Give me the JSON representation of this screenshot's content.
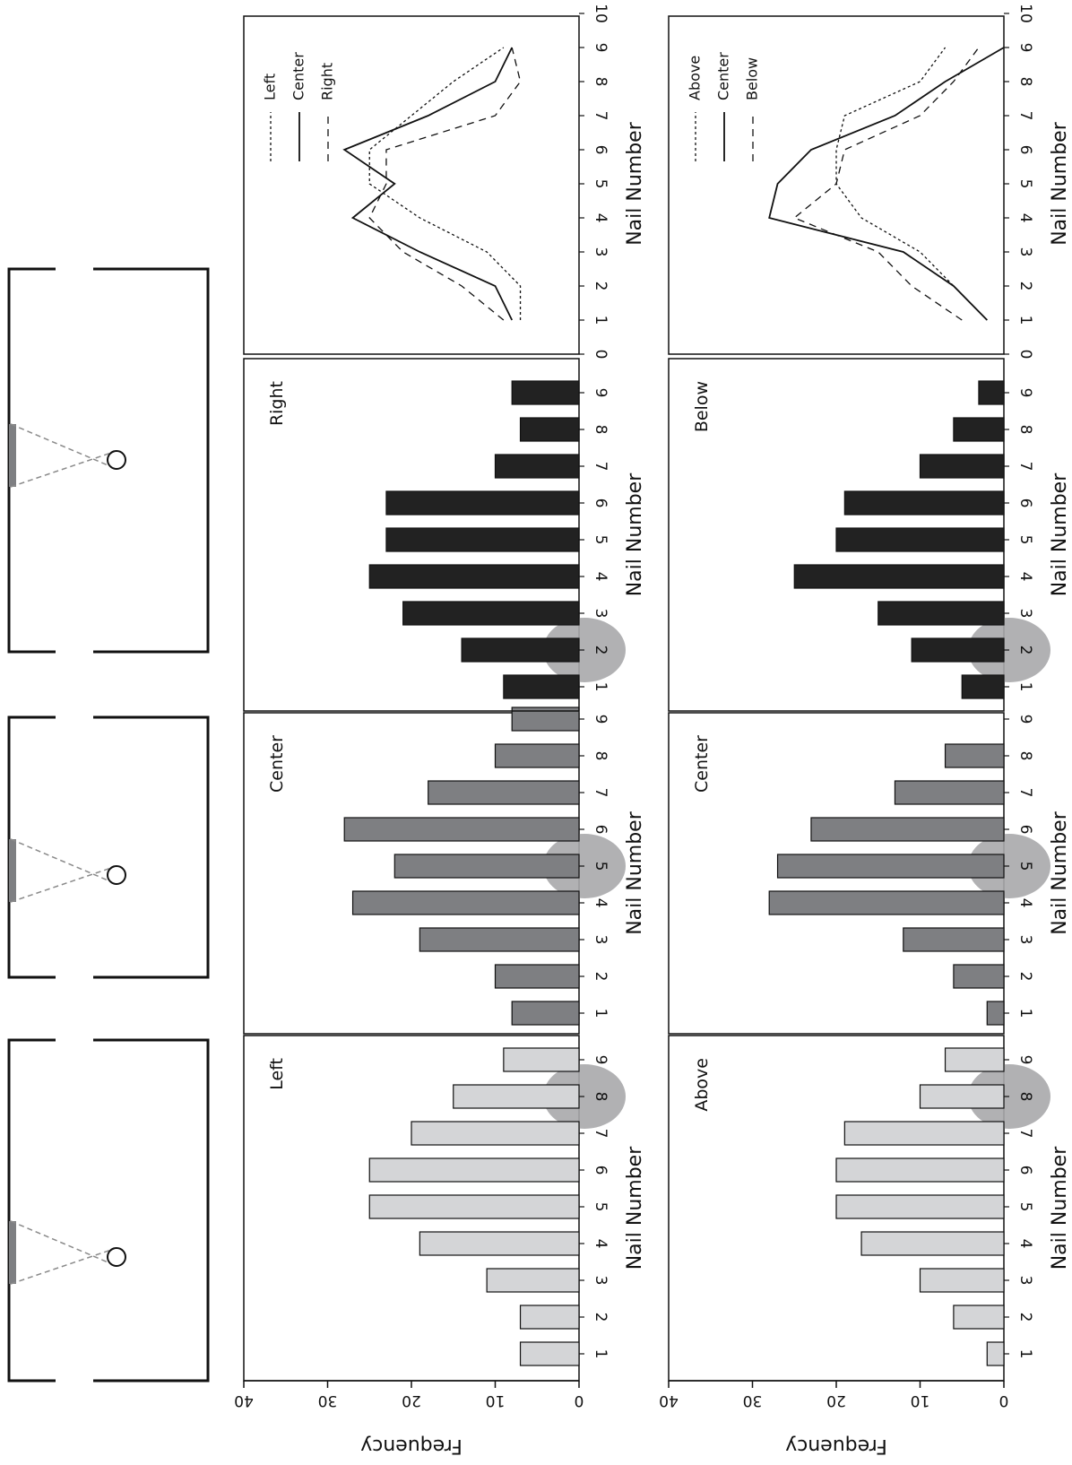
{
  "colors": {
    "left": "#d4d5d7",
    "center": "#7e7f82",
    "right": "#222222",
    "highlight": "#a9a9ab",
    "axis": "#111111",
    "diagram_line": "#8a8a8a"
  },
  "labels": {
    "x_axis": "Nail Number",
    "y_axis": "Frequency",
    "y_ticks": [
      "0",
      "10",
      "20",
      "30",
      "40"
    ],
    "line_x_ticks": [
      "0",
      "1",
      "2",
      "3",
      "4",
      "5",
      "6",
      "7",
      "8",
      "9",
      "10"
    ],
    "bar_x_ticks": [
      "1",
      "2",
      "3",
      "4",
      "5",
      "6",
      "7",
      "8",
      "9"
    ]
  },
  "chart_data": [
    {
      "type": "bar",
      "title": "Left",
      "categories": [
        1,
        2,
        3,
        4,
        5,
        6,
        7,
        8,
        9
      ],
      "values": [
        7,
        7,
        11,
        19,
        25,
        25,
        20,
        15,
        9
      ],
      "xlabel": "Nail Number",
      "ylabel": "Frequency",
      "ylim": [
        0,
        40
      ],
      "highlighted_nails": [
        8
      ]
    },
    {
      "type": "bar",
      "title": "Center",
      "categories": [
        1,
        2,
        3,
        4,
        5,
        6,
        7,
        8,
        9
      ],
      "values": [
        8,
        10,
        19,
        27,
        22,
        28,
        18,
        10,
        8
      ],
      "xlabel": "Nail Number",
      "ylabel": "Frequency",
      "ylim": [
        0,
        40
      ],
      "highlighted_nails": [
        5
      ]
    },
    {
      "type": "bar",
      "title": "Right",
      "categories": [
        1,
        2,
        3,
        4,
        5,
        6,
        7,
        8,
        9
      ],
      "values": [
        9,
        14,
        21,
        25,
        23,
        23,
        10,
        7,
        8
      ],
      "xlabel": "Nail Number",
      "ylabel": "Frequency",
      "ylim": [
        0,
        40
      ],
      "highlighted_nails": [
        2
      ]
    },
    {
      "type": "line",
      "xlabel": "Nail Number",
      "xlim": [
        0,
        10
      ],
      "ylim": [
        0,
        40
      ],
      "legend_position": "top-right",
      "series": [
        {
          "name": "Left",
          "x": [
            1,
            2,
            3,
            4,
            5,
            6,
            7,
            8,
            9
          ],
          "y": [
            7,
            7,
            11,
            19,
            25,
            25,
            20,
            15,
            9
          ]
        },
        {
          "name": "Center",
          "x": [
            1,
            2,
            3,
            4,
            5,
            6,
            7,
            8,
            9
          ],
          "y": [
            8,
            10,
            19,
            27,
            22,
            28,
            18,
            10,
            8
          ]
        },
        {
          "name": "Right",
          "x": [
            1,
            2,
            3,
            4,
            5,
            6,
            7,
            8,
            9
          ],
          "y": [
            9,
            14,
            21,
            25,
            23,
            23,
            10,
            7,
            8
          ]
        }
      ]
    },
    {
      "type": "bar",
      "title": "Above",
      "categories": [
        1,
        2,
        3,
        4,
        5,
        6,
        7,
        8,
        9
      ],
      "values": [
        2,
        6,
        10,
        17,
        20,
        20,
        19,
        10,
        7
      ],
      "xlabel": "Nail Number",
      "ylabel": "Frequency",
      "ylim": [
        0,
        40
      ],
      "highlighted_nails": [
        8
      ]
    },
    {
      "type": "bar",
      "title": "Center",
      "categories": [
        1,
        2,
        3,
        4,
        5,
        6,
        7,
        8,
        9
      ],
      "values": [
        2,
        6,
        12,
        28,
        27,
        23,
        13,
        7,
        0
      ],
      "xlabel": "Nail Number",
      "ylabel": "Frequency",
      "ylim": [
        0,
        40
      ],
      "highlighted_nails": [
        5
      ]
    },
    {
      "type": "bar",
      "title": "Below",
      "categories": [
        1,
        2,
        3,
        4,
        5,
        6,
        7,
        8,
        9
      ],
      "values": [
        5,
        11,
        15,
        25,
        20,
        19,
        10,
        6,
        3
      ],
      "xlabel": "Nail Number",
      "ylabel": "Frequency",
      "ylim": [
        0,
        40
      ],
      "highlighted_nails": [
        2
      ]
    },
    {
      "type": "line",
      "xlabel": "Nail Number",
      "xlim": [
        0,
        10
      ],
      "ylim": [
        0,
        40
      ],
      "legend_position": "top-right",
      "series": [
        {
          "name": "Above",
          "x": [
            1,
            2,
            3,
            4,
            5,
            6,
            7,
            8,
            9
          ],
          "y": [
            2,
            6,
            10,
            17,
            20,
            20,
            19,
            10,
            7
          ]
        },
        {
          "name": "Center",
          "x": [
            1,
            2,
            3,
            4,
            5,
            6,
            7,
            8,
            9
          ],
          "y": [
            2,
            6,
            12,
            28,
            27,
            23,
            13,
            7,
            0
          ]
        },
        {
          "name": "Below",
          "x": [
            1,
            2,
            3,
            4,
            5,
            6,
            7,
            8,
            9
          ],
          "y": [
            5,
            11,
            15,
            25,
            20,
            19,
            10,
            6,
            3
          ]
        }
      ]
    }
  ]
}
